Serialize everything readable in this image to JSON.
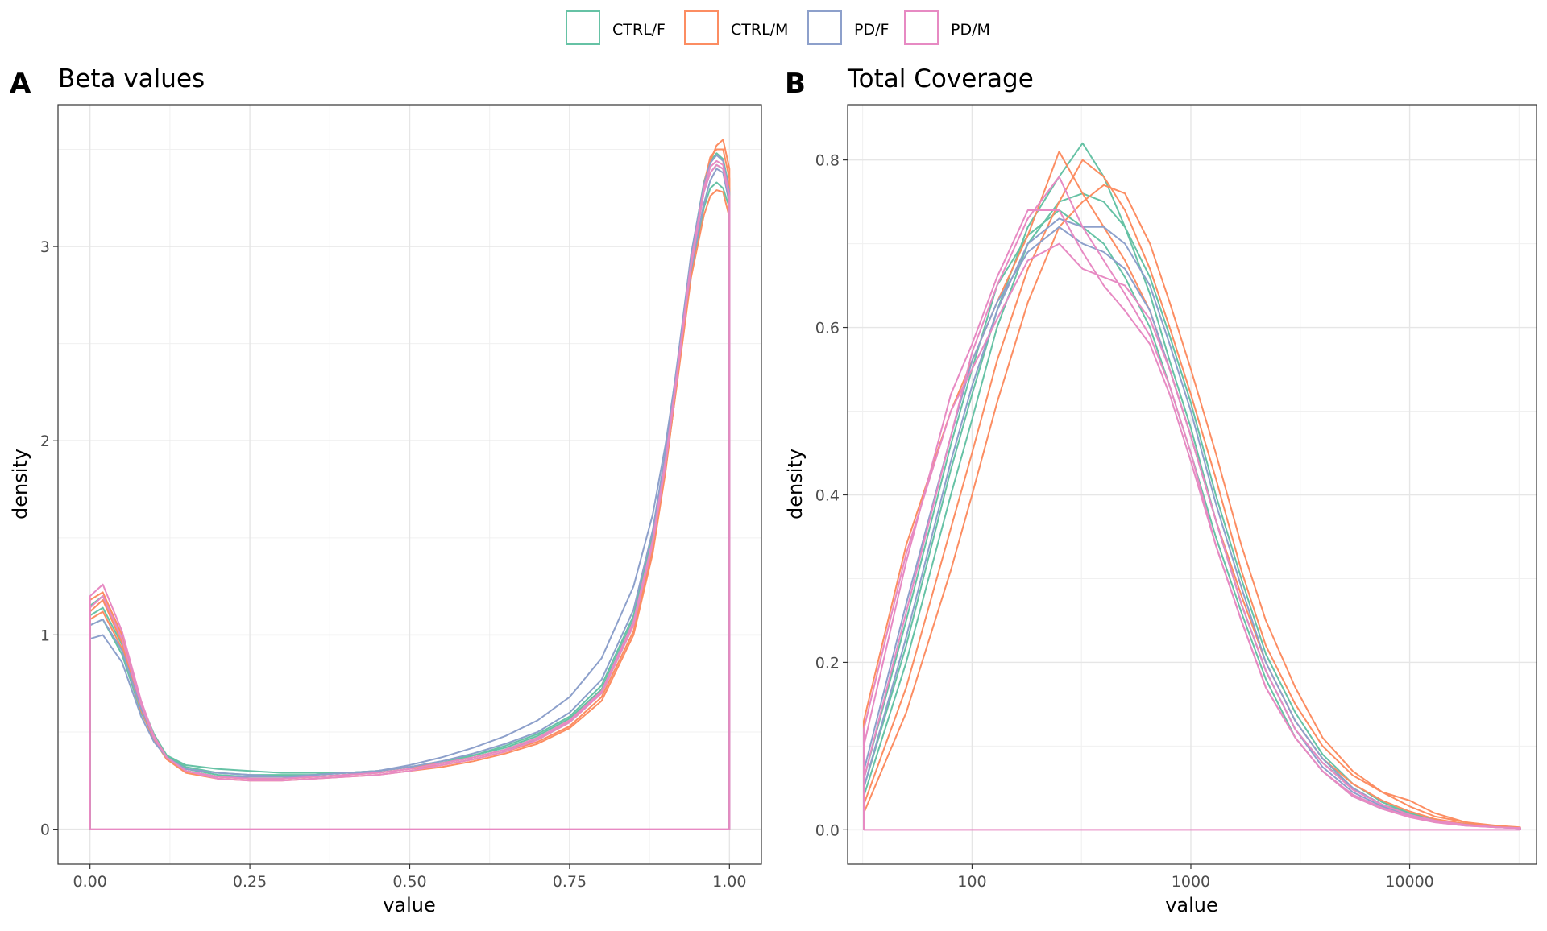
{
  "legend": [
    {
      "label": "CTRL/F",
      "color": "#66C2A5"
    },
    {
      "label": "CTRL/M",
      "color": "#FC8D62"
    },
    {
      "label": "PD/F",
      "color": "#8DA0CB"
    },
    {
      "label": "PD/M",
      "color": "#E78AC3"
    }
  ],
  "chart_data": [
    {
      "type": "line",
      "tag": "A",
      "title": "Beta values",
      "xlabel": "value",
      "ylabel": "density",
      "x_scale": "linear",
      "xlim": [
        -0.05,
        1.05
      ],
      "ylim": [
        -0.18,
        3.73
      ],
      "grid": true,
      "x_ticks": [
        {
          "value": 0,
          "label": "0.00"
        },
        {
          "value": 0.25,
          "label": "0.25"
        },
        {
          "value": 0.5,
          "label": "0.50"
        },
        {
          "value": 0.75,
          "label": "0.75"
        },
        {
          "value": 1,
          "label": "1.00"
        }
      ],
      "y_ticks": [
        {
          "value": 0,
          "label": "0"
        },
        {
          "value": 1,
          "label": "1"
        },
        {
          "value": 2,
          "label": "2"
        },
        {
          "value": 3,
          "label": "3"
        }
      ],
      "x": [
        0,
        0.02,
        0.05,
        0.08,
        0.1,
        0.12,
        0.15,
        0.2,
        0.25,
        0.3,
        0.35,
        0.4,
        0.45,
        0.5,
        0.55,
        0.6,
        0.65,
        0.7,
        0.75,
        0.8,
        0.85,
        0.88,
        0.9,
        0.92,
        0.94,
        0.96,
        0.97,
        0.98,
        0.99,
        1
      ],
      "series": [
        {
          "group": "CTRL/F",
          "values": [
            1.05,
            1.08,
            0.9,
            0.6,
            0.47,
            0.38,
            0.33,
            0.31,
            0.3,
            0.29,
            0.29,
            0.29,
            0.3,
            0.32,
            0.34,
            0.37,
            0.41,
            0.46,
            0.55,
            0.7,
            1.05,
            1.45,
            1.85,
            2.35,
            2.85,
            3.2,
            3.3,
            3.33,
            3.3,
            3.2
          ]
        },
        {
          "group": "CTRL/F",
          "values": [
            1.1,
            1.14,
            0.95,
            0.63,
            0.48,
            0.38,
            0.32,
            0.29,
            0.28,
            0.28,
            0.28,
            0.29,
            0.3,
            0.32,
            0.34,
            0.38,
            0.42,
            0.48,
            0.57,
            0.72,
            1.08,
            1.5,
            1.9,
            2.4,
            2.9,
            3.28,
            3.38,
            3.42,
            3.4,
            3.25
          ]
        },
        {
          "group": "CTRL/F",
          "values": [
            1.15,
            1.2,
            0.98,
            0.65,
            0.49,
            0.38,
            0.31,
            0.28,
            0.27,
            0.27,
            0.28,
            0.29,
            0.3,
            0.32,
            0.35,
            0.38,
            0.43,
            0.49,
            0.58,
            0.74,
            1.1,
            1.52,
            1.93,
            2.43,
            2.95,
            3.33,
            3.44,
            3.48,
            3.45,
            3.3
          ]
        },
        {
          "group": "CTRL/M",
          "values": [
            1.12,
            1.18,
            0.96,
            0.62,
            0.46,
            0.36,
            0.29,
            0.26,
            0.25,
            0.25,
            0.26,
            0.27,
            0.28,
            0.3,
            0.32,
            0.35,
            0.39,
            0.44,
            0.52,
            0.66,
            1.0,
            1.42,
            1.84,
            2.36,
            2.9,
            3.3,
            3.44,
            3.52,
            3.55,
            3.4
          ]
        },
        {
          "group": "CTRL/M",
          "values": [
            1.18,
            1.22,
            1.0,
            0.65,
            0.48,
            0.37,
            0.3,
            0.27,
            0.26,
            0.26,
            0.27,
            0.28,
            0.29,
            0.31,
            0.33,
            0.36,
            0.4,
            0.45,
            0.53,
            0.68,
            1.02,
            1.44,
            1.86,
            2.38,
            2.92,
            3.32,
            3.46,
            3.5,
            3.5,
            3.35
          ]
        },
        {
          "group": "CTRL/M",
          "values": [
            1.08,
            1.12,
            0.93,
            0.61,
            0.46,
            0.36,
            0.3,
            0.27,
            0.26,
            0.26,
            0.27,
            0.28,
            0.3,
            0.32,
            0.34,
            0.37,
            0.41,
            0.47,
            0.56,
            0.71,
            1.06,
            1.46,
            1.86,
            2.34,
            2.84,
            3.16,
            3.26,
            3.29,
            3.28,
            3.15
          ]
        },
        {
          "group": "PD/F",
          "values": [
            0.98,
            1.0,
            0.86,
            0.58,
            0.45,
            0.37,
            0.31,
            0.29,
            0.28,
            0.27,
            0.27,
            0.28,
            0.3,
            0.33,
            0.37,
            0.42,
            0.48,
            0.56,
            0.68,
            0.88,
            1.25,
            1.62,
            1.98,
            2.42,
            2.88,
            3.22,
            3.34,
            3.4,
            3.38,
            3.22
          ]
        },
        {
          "group": "PD/F",
          "values": [
            1.05,
            1.08,
            0.92,
            0.62,
            0.47,
            0.37,
            0.3,
            0.27,
            0.27,
            0.27,
            0.28,
            0.29,
            0.3,
            0.32,
            0.35,
            0.39,
            0.44,
            0.5,
            0.6,
            0.77,
            1.13,
            1.54,
            1.94,
            2.44,
            2.96,
            3.32,
            3.43,
            3.47,
            3.44,
            3.28
          ]
        },
        {
          "group": "PD/M",
          "values": [
            1.2,
            1.26,
            1.02,
            0.66,
            0.48,
            0.37,
            0.3,
            0.26,
            0.25,
            0.25,
            0.26,
            0.27,
            0.28,
            0.3,
            0.33,
            0.36,
            0.4,
            0.46,
            0.55,
            0.7,
            1.05,
            1.47,
            1.88,
            2.38,
            2.9,
            3.28,
            3.38,
            3.42,
            3.4,
            3.25
          ]
        },
        {
          "group": "PD/M",
          "values": [
            1.14,
            1.2,
            0.98,
            0.64,
            0.47,
            0.37,
            0.3,
            0.27,
            0.26,
            0.26,
            0.27,
            0.28,
            0.29,
            0.31,
            0.34,
            0.37,
            0.41,
            0.47,
            0.56,
            0.71,
            1.07,
            1.49,
            1.9,
            2.4,
            2.92,
            3.3,
            3.41,
            3.44,
            3.42,
            3.26
          ]
        }
      ]
    },
    {
      "type": "line",
      "tag": "B",
      "title": "Total Coverage",
      "xlabel": "value",
      "ylabel": "density",
      "x_scale": "log10",
      "xlim": [
        27,
        38000
      ],
      "ylim": [
        -0.041,
        0.866
      ],
      "grid": true,
      "x_ticks": [
        {
          "value": 100,
          "label": "100"
        },
        {
          "value": 1000,
          "label": "1000"
        },
        {
          "value": 10000,
          "label": "10000"
        }
      ],
      "y_ticks": [
        {
          "value": 0,
          "label": "0.0"
        },
        {
          "value": 0.2,
          "label": "0.2"
        },
        {
          "value": 0.4,
          "label": "0.4"
        },
        {
          "value": 0.6,
          "label": "0.6"
        },
        {
          "value": 0.8,
          "label": "0.8"
        }
      ],
      "x": [
        32,
        50,
        80,
        100,
        130,
        180,
        250,
        320,
        400,
        500,
        650,
        800,
        1000,
        1300,
        1700,
        2200,
        3000,
        4000,
        5500,
        7500,
        10000,
        13000,
        18000,
        25000,
        32000
      ],
      "series": [
        {
          "group": "CTRL/F",
          "values": [
            0.05,
            0.22,
            0.43,
            0.52,
            0.62,
            0.72,
            0.78,
            0.82,
            0.78,
            0.72,
            0.64,
            0.56,
            0.48,
            0.37,
            0.27,
            0.19,
            0.12,
            0.08,
            0.05,
            0.03,
            0.02,
            0.012,
            0.007,
            0.004,
            0.002
          ]
        },
        {
          "group": "CTRL/F",
          "values": [
            0.04,
            0.2,
            0.4,
            0.49,
            0.6,
            0.7,
            0.75,
            0.76,
            0.75,
            0.72,
            0.66,
            0.59,
            0.51,
            0.4,
            0.3,
            0.21,
            0.14,
            0.09,
            0.055,
            0.033,
            0.02,
            0.012,
            0.007,
            0.004,
            0.002
          ]
        },
        {
          "group": "CTRL/F",
          "values": [
            0.06,
            0.25,
            0.46,
            0.55,
            0.65,
            0.71,
            0.74,
            0.72,
            0.7,
            0.66,
            0.6,
            0.53,
            0.45,
            0.35,
            0.26,
            0.18,
            0.11,
            0.07,
            0.04,
            0.025,
            0.016,
            0.01,
            0.006,
            0.003,
            0.002
          ]
        },
        {
          "group": "CTRL/M",
          "values": [
            0.03,
            0.17,
            0.36,
            0.45,
            0.56,
            0.67,
            0.75,
            0.8,
            0.78,
            0.74,
            0.67,
            0.6,
            0.52,
            0.42,
            0.31,
            0.22,
            0.15,
            0.1,
            0.065,
            0.045,
            0.035,
            0.02,
            0.009,
            0.004,
            0.002
          ]
        },
        {
          "group": "CTRL/M",
          "values": [
            0.13,
            0.34,
            0.5,
            0.56,
            0.63,
            0.71,
            0.81,
            0.76,
            0.72,
            0.68,
            0.62,
            0.55,
            0.47,
            0.37,
            0.28,
            0.2,
            0.13,
            0.085,
            0.055,
            0.035,
            0.022,
            0.013,
            0.007,
            0.004,
            0.002
          ]
        },
        {
          "group": "CTRL/M",
          "values": [
            0.02,
            0.14,
            0.31,
            0.4,
            0.51,
            0.63,
            0.72,
            0.75,
            0.77,
            0.76,
            0.7,
            0.63,
            0.55,
            0.45,
            0.34,
            0.25,
            0.17,
            0.11,
            0.07,
            0.045,
            0.028,
            0.016,
            0.009,
            0.005,
            0.003
          ]
        },
        {
          "group": "PD/F",
          "values": [
            0.05,
            0.23,
            0.44,
            0.53,
            0.62,
            0.7,
            0.73,
            0.72,
            0.72,
            0.7,
            0.65,
            0.58,
            0.5,
            0.39,
            0.29,
            0.2,
            0.13,
            0.085,
            0.05,
            0.03,
            0.018,
            0.01,
            0.006,
            0.003,
            0.002
          ]
        },
        {
          "group": "PD/F",
          "values": [
            0.07,
            0.27,
            0.47,
            0.56,
            0.63,
            0.69,
            0.72,
            0.7,
            0.69,
            0.67,
            0.62,
            0.55,
            0.47,
            0.37,
            0.27,
            0.19,
            0.12,
            0.075,
            0.045,
            0.028,
            0.017,
            0.01,
            0.006,
            0.003,
            0.002
          ]
        },
        {
          "group": "PD/M",
          "values": [
            0.1,
            0.32,
            0.52,
            0.58,
            0.66,
            0.74,
            0.74,
            0.69,
            0.65,
            0.62,
            0.58,
            0.52,
            0.44,
            0.34,
            0.25,
            0.17,
            0.11,
            0.07,
            0.04,
            0.025,
            0.015,
            0.009,
            0.005,
            0.003,
            0.002
          ]
        },
        {
          "group": "PD/M",
          "values": [
            0.06,
            0.26,
            0.47,
            0.57,
            0.65,
            0.73,
            0.78,
            0.72,
            0.68,
            0.64,
            0.59,
            0.53,
            0.45,
            0.34,
            0.25,
            0.17,
            0.11,
            0.07,
            0.042,
            0.026,
            0.016,
            0.009,
            0.005,
            0.003,
            0.002
          ]
        },
        {
          "group": "PD/M",
          "values": [
            0.12,
            0.33,
            0.5,
            0.55,
            0.61,
            0.68,
            0.7,
            0.67,
            0.66,
            0.65,
            0.61,
            0.55,
            0.47,
            0.37,
            0.27,
            0.19,
            0.12,
            0.08,
            0.048,
            0.03,
            0.018,
            0.011,
            0.006,
            0.003,
            0.002
          ]
        }
      ]
    }
  ]
}
